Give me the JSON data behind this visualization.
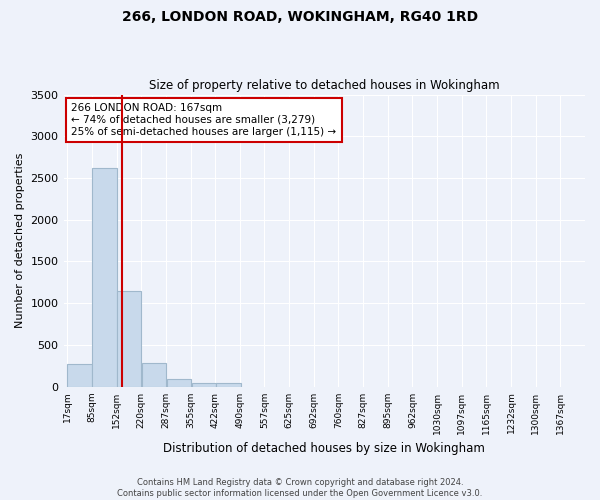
{
  "title": "266, LONDON ROAD, WOKINGHAM, RG40 1RD",
  "subtitle": "Size of property relative to detached houses in Wokingham",
  "xlabel": "Distribution of detached houses by size in Wokingham",
  "ylabel": "Number of detached properties",
  "annotation_line1": "266 LONDON ROAD: 167sqm",
  "annotation_line2": "← 74% of detached houses are smaller (3,279)",
  "annotation_line3": "25% of semi-detached houses are larger (1,115) →",
  "property_size": 167,
  "bar_left_edges": [
    17,
    85,
    152,
    220,
    287,
    355,
    422,
    490,
    557,
    625,
    692,
    760,
    827,
    895,
    962,
    1030,
    1097,
    1165,
    1232,
    1300
  ],
  "bar_heights": [
    270,
    2620,
    1150,
    280,
    90,
    50,
    40,
    0,
    0,
    0,
    0,
    0,
    0,
    0,
    0,
    0,
    0,
    0,
    0,
    0
  ],
  "bin_width": 67,
  "bar_color": "#c8d9eb",
  "bar_edge_color": "#a0b8cc",
  "vline_color": "#cc0000",
  "vline_x": 167,
  "ylim": [
    0,
    3500
  ],
  "yticks": [
    0,
    500,
    1000,
    1500,
    2000,
    2500,
    3000,
    3500
  ],
  "tick_labels": [
    "17sqm",
    "85sqm",
    "152sqm",
    "220sqm",
    "287sqm",
    "355sqm",
    "422sqm",
    "490sqm",
    "557sqm",
    "625sqm",
    "692sqm",
    "760sqm",
    "827sqm",
    "895sqm",
    "962sqm",
    "1030sqm",
    "1097sqm",
    "1165sqm",
    "1232sqm",
    "1300sqm",
    "1367sqm"
  ],
  "background_color": "#eef2fa",
  "grid_color": "#ffffff",
  "footer_line1": "Contains HM Land Registry data © Crown copyright and database right 2024.",
  "footer_line2": "Contains public sector information licensed under the Open Government Licence v3.0."
}
